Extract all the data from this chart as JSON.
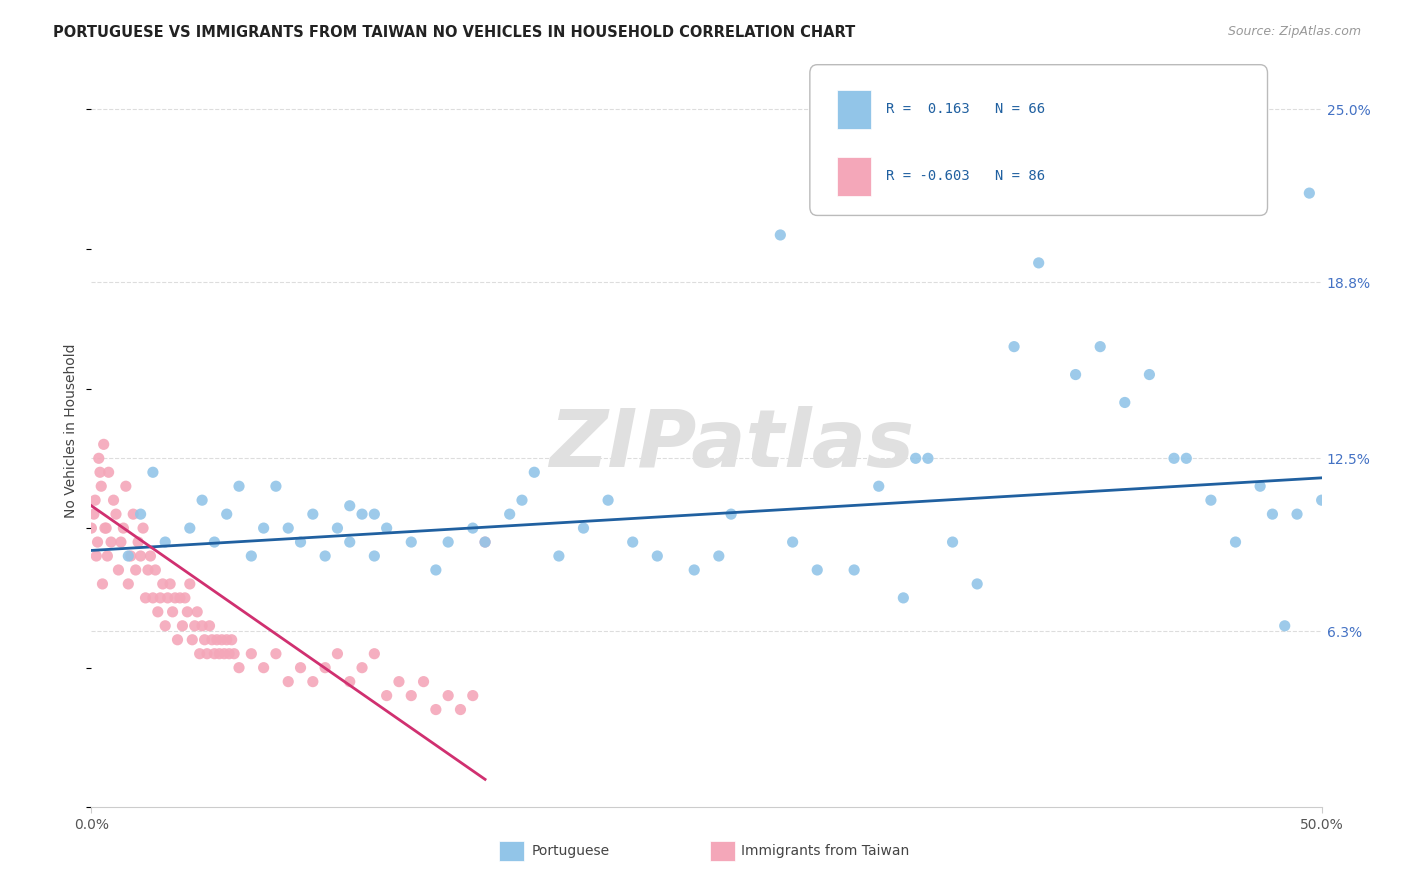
{
  "title": "PORTUGUESE VS IMMIGRANTS FROM TAIWAN NO VEHICLES IN HOUSEHOLD CORRELATION CHART",
  "source": "Source: ZipAtlas.com",
  "ylabel": "No Vehicles in Household",
  "ytick_labels": [
    "6.3%",
    "12.5%",
    "18.8%",
    "25.0%"
  ],
  "ytick_values": [
    6.3,
    12.5,
    18.8,
    25.0
  ],
  "xlim": [
    0.0,
    50.0
  ],
  "ylim": [
    0.0,
    27.0
  ],
  "color_portuguese": "#92c5e8",
  "color_taiwan": "#f4a7b9",
  "trendline_portuguese": "#2060a0",
  "trendline_taiwan": "#d03070",
  "watermark": "ZIPatlas",
  "portuguese_trendline": [
    [
      0,
      9.2
    ],
    [
      50,
      11.8
    ]
  ],
  "taiwan_trendline": [
    [
      0,
      10.8
    ],
    [
      16,
      1.0
    ]
  ],
  "portuguese_scatter": [
    [
      1.5,
      9.0
    ],
    [
      2.0,
      10.5
    ],
    [
      2.5,
      12.0
    ],
    [
      3.0,
      9.5
    ],
    [
      4.0,
      10.0
    ],
    [
      4.5,
      11.0
    ],
    [
      5.0,
      9.5
    ],
    [
      5.5,
      10.5
    ],
    [
      6.0,
      11.5
    ],
    [
      6.5,
      9.0
    ],
    [
      7.0,
      10.0
    ],
    [
      7.5,
      11.5
    ],
    [
      8.0,
      10.0
    ],
    [
      8.5,
      9.5
    ],
    [
      9.0,
      10.5
    ],
    [
      9.5,
      9.0
    ],
    [
      10.0,
      10.0
    ],
    [
      10.5,
      9.5
    ],
    [
      11.0,
      10.5
    ],
    [
      11.5,
      9.0
    ],
    [
      12.0,
      10.0
    ],
    [
      13.0,
      9.5
    ],
    [
      14.0,
      8.5
    ],
    [
      14.5,
      9.5
    ],
    [
      15.5,
      10.0
    ],
    [
      16.0,
      9.5
    ],
    [
      17.0,
      10.5
    ],
    [
      18.0,
      12.0
    ],
    [
      19.0,
      9.0
    ],
    [
      20.0,
      10.0
    ],
    [
      21.0,
      11.0
    ],
    [
      22.0,
      9.5
    ],
    [
      23.0,
      9.0
    ],
    [
      24.5,
      8.5
    ],
    [
      25.5,
      9.0
    ],
    [
      26.0,
      10.5
    ],
    [
      28.0,
      20.5
    ],
    [
      29.5,
      8.5
    ],
    [
      31.0,
      8.5
    ],
    [
      32.0,
      11.5
    ],
    [
      33.0,
      7.5
    ],
    [
      33.5,
      12.5
    ],
    [
      34.0,
      12.5
    ],
    [
      35.0,
      9.5
    ],
    [
      36.0,
      8.0
    ],
    [
      37.5,
      16.5
    ],
    [
      38.5,
      19.5
    ],
    [
      40.0,
      15.5
    ],
    [
      41.0,
      16.5
    ],
    [
      42.0,
      14.5
    ],
    [
      43.0,
      15.5
    ],
    [
      44.0,
      12.5
    ],
    [
      44.5,
      12.5
    ],
    [
      45.5,
      11.0
    ],
    [
      46.5,
      9.5
    ],
    [
      47.5,
      11.5
    ],
    [
      48.5,
      6.5
    ],
    [
      49.0,
      10.5
    ],
    [
      49.5,
      22.0
    ],
    [
      50.0,
      11.0
    ],
    [
      50.5,
      10.0
    ],
    [
      10.5,
      10.8
    ],
    [
      11.5,
      10.5
    ],
    [
      17.5,
      11.0
    ],
    [
      28.5,
      9.5
    ],
    [
      48.0,
      10.5
    ]
  ],
  "taiwan_scatter": [
    [
      0.1,
      10.5
    ],
    [
      0.2,
      9.0
    ],
    [
      0.3,
      12.5
    ],
    [
      0.4,
      11.5
    ],
    [
      0.5,
      13.0
    ],
    [
      0.6,
      10.0
    ],
    [
      0.7,
      12.0
    ],
    [
      0.8,
      9.5
    ],
    [
      0.9,
      11.0
    ],
    [
      1.0,
      10.5
    ],
    [
      1.1,
      8.5
    ],
    [
      1.2,
      9.5
    ],
    [
      1.3,
      10.0
    ],
    [
      1.4,
      11.5
    ],
    [
      1.5,
      8.0
    ],
    [
      1.6,
      9.0
    ],
    [
      1.7,
      10.5
    ],
    [
      1.8,
      8.5
    ],
    [
      1.9,
      9.5
    ],
    [
      2.0,
      9.0
    ],
    [
      2.1,
      10.0
    ],
    [
      2.2,
      7.5
    ],
    [
      2.3,
      8.5
    ],
    [
      2.4,
      9.0
    ],
    [
      2.5,
      7.5
    ],
    [
      2.6,
      8.5
    ],
    [
      2.7,
      7.0
    ],
    [
      2.8,
      7.5
    ],
    [
      2.9,
      8.0
    ],
    [
      3.0,
      6.5
    ],
    [
      3.1,
      7.5
    ],
    [
      3.2,
      8.0
    ],
    [
      3.3,
      7.0
    ],
    [
      3.4,
      7.5
    ],
    [
      3.5,
      6.0
    ],
    [
      3.6,
      7.5
    ],
    [
      3.7,
      6.5
    ],
    [
      3.8,
      7.5
    ],
    [
      3.9,
      7.0
    ],
    [
      4.0,
      8.0
    ],
    [
      4.1,
      6.0
    ],
    [
      4.2,
      6.5
    ],
    [
      4.3,
      7.0
    ],
    [
      4.4,
      5.5
    ],
    [
      4.5,
      6.5
    ],
    [
      4.6,
      6.0
    ],
    [
      4.7,
      5.5
    ],
    [
      4.8,
      6.5
    ],
    [
      4.9,
      6.0
    ],
    [
      5.0,
      5.5
    ],
    [
      5.1,
      6.0
    ],
    [
      5.2,
      5.5
    ],
    [
      5.3,
      6.0
    ],
    [
      5.4,
      5.5
    ],
    [
      5.5,
      6.0
    ],
    [
      5.6,
      5.5
    ],
    [
      5.7,
      6.0
    ],
    [
      5.8,
      5.5
    ],
    [
      6.0,
      5.0
    ],
    [
      6.5,
      5.5
    ],
    [
      7.0,
      5.0
    ],
    [
      7.5,
      5.5
    ],
    [
      8.0,
      4.5
    ],
    [
      8.5,
      5.0
    ],
    [
      9.0,
      4.5
    ],
    [
      9.5,
      5.0
    ],
    [
      10.0,
      5.5
    ],
    [
      10.5,
      4.5
    ],
    [
      11.0,
      5.0
    ],
    [
      11.5,
      5.5
    ],
    [
      12.0,
      4.0
    ],
    [
      12.5,
      4.5
    ],
    [
      13.0,
      4.0
    ],
    [
      13.5,
      4.5
    ],
    [
      14.0,
      3.5
    ],
    [
      14.5,
      4.0
    ],
    [
      15.0,
      3.5
    ],
    [
      15.5,
      4.0
    ],
    [
      0.0,
      10.0
    ],
    [
      0.15,
      11.0
    ],
    [
      0.25,
      9.5
    ],
    [
      0.35,
      12.0
    ],
    [
      0.45,
      8.0
    ],
    [
      0.55,
      10.0
    ],
    [
      0.65,
      9.0
    ],
    [
      16.0,
      9.5
    ]
  ]
}
